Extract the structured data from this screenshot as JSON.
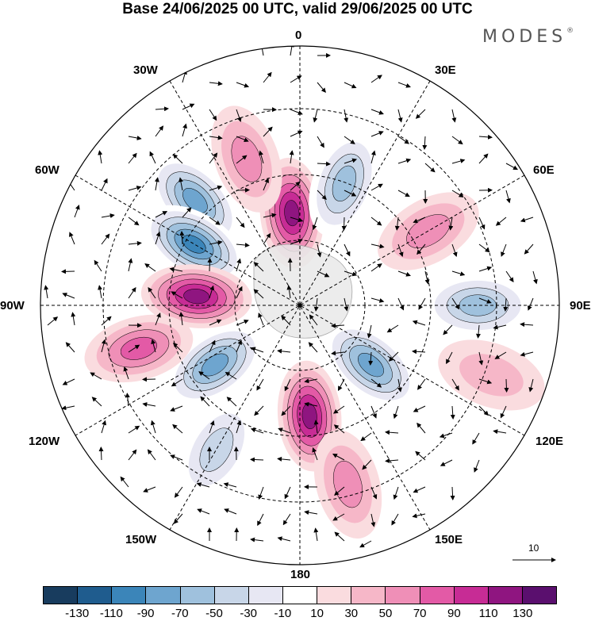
{
  "title": "Base 24/06/2025 00 UTC, valid 29/06/2025 00 UTC",
  "logo": "MODES",
  "logo_mark": "®",
  "longitude_labels": {
    "lon_0": "0",
    "lon_30e": "30E",
    "lon_60e": "60E",
    "lon_90e": "90E",
    "lon_120e": "120E",
    "lon_150e": "150E",
    "lon_180": "180",
    "lon_150w": "150W",
    "lon_120w": "120W",
    "lon_90w": "90W",
    "lon_60w": "60W",
    "lon_30w": "30W"
  },
  "vector_scale_label": "10",
  "colorbar": {
    "colors": [
      "#183c5e",
      "#1f5c8e",
      "#3b85b9",
      "#6ea5cf",
      "#9fc1dd",
      "#c8d6e8",
      "#e7e7f3",
      "#ffffff",
      "#fadcdf",
      "#f6b7c8",
      "#ef8fb7",
      "#e35aa6",
      "#c72c95",
      "#8f1580",
      "#5a0f6e"
    ],
    "ticks": [
      "-130",
      "-110",
      "-90",
      "-70",
      "-50",
      "-30",
      "-10",
      "10",
      "30",
      "50",
      "70",
      "90",
      "110",
      "130"
    ]
  },
  "anomaly_features": [
    {
      "kind": "neg",
      "level": -90,
      "lon": -45,
      "lat": 50
    },
    {
      "kind": "neg",
      "level": -110,
      "lon": -60,
      "lat": 57
    },
    {
      "kind": "pos",
      "level": 110,
      "lon": -85,
      "lat": 62
    },
    {
      "kind": "pos",
      "level": 110,
      "lon": -5,
      "lat": 65
    },
    {
      "kind": "pos",
      "level": 50,
      "lon": -20,
      "lat": 48
    },
    {
      "kind": "neg",
      "level": -70,
      "lon": 20,
      "lat": 55
    },
    {
      "kind": "pos",
      "level": 50,
      "lon": 60,
      "lat": 50
    },
    {
      "kind": "neg",
      "level": -70,
      "lon": 90,
      "lat": 42
    },
    {
      "kind": "neg",
      "level": -90,
      "lon": 130,
      "lat": 65
    },
    {
      "kind": "pos",
      "level": 110,
      "lon": 175,
      "lat": 60
    },
    {
      "kind": "neg",
      "level": -90,
      "lon": -125,
      "lat": 62
    },
    {
      "kind": "pos",
      "level": 50,
      "lon": 165,
      "lat": 40
    },
    {
      "kind": "pos",
      "level": 70,
      "lon": -105,
      "lat": 45
    },
    {
      "kind": "neg",
      "level": -50,
      "lon": -150,
      "lat": 45
    },
    {
      "kind": "pos",
      "level": 30,
      "lon": 110,
      "lat": 35
    }
  ]
}
